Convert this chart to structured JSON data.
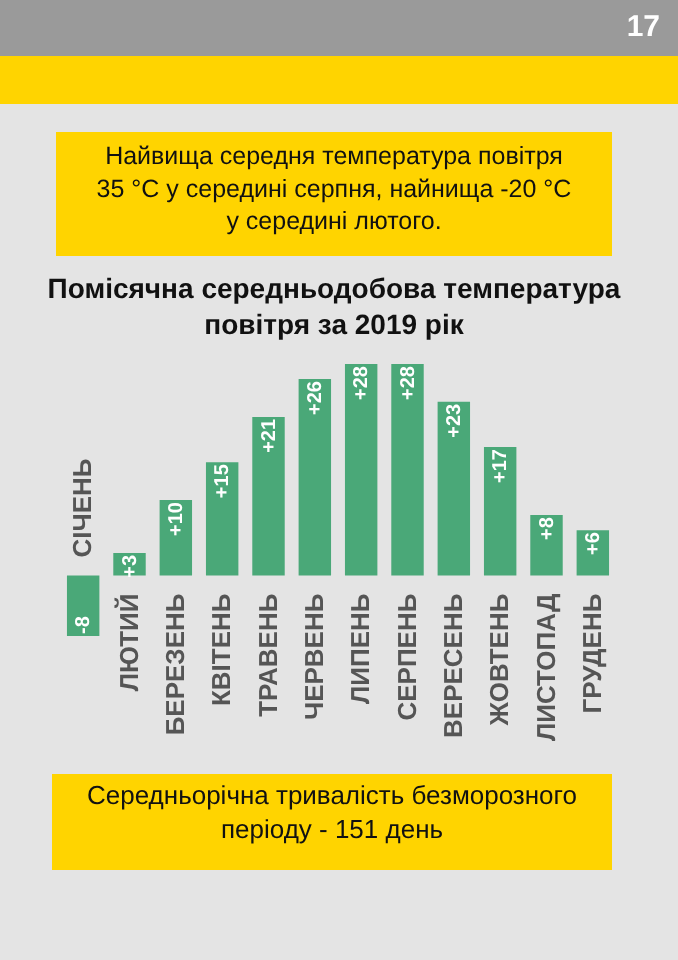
{
  "chart_data": {
    "type": "bar",
    "title": "Помісячна середньодобова температура\nповітря за 2019 рік",
    "subtitle": "Найвища середня температура повітря\n35 °C у середині серпня, найнища -20 °C\nу середині лютого.",
    "annotations": [
      "Середньорічна тривалість безморозного\nперіоду - 151 день",
      "17"
    ],
    "categories": [
      "СІЧЕНЬ",
      "ЛЮТИЙ",
      "БЕРЕЗЕНЬ",
      "КВІТЕНЬ",
      "ТРАВЕНЬ",
      "ЧЕРВЕНЬ",
      "ЛИПЕНЬ",
      "СЕРПЕНЬ",
      "ВЕРЕСЕНЬ",
      "ЖОВТЕНЬ",
      "ЛИСТОПАД",
      "ГРУДЕНЬ"
    ],
    "values": [
      -8,
      3,
      10,
      15,
      21,
      26,
      28,
      28,
      23,
      17,
      8,
      6
    ],
    "value_labels": [
      "-8",
      "+3",
      "+10",
      "+15",
      "+21",
      "+26",
      "+28",
      "+28",
      "+23",
      "+17",
      "+8",
      "+6"
    ],
    "color": "#4aa878"
  }
}
